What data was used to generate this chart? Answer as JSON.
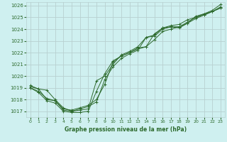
{
  "xlabel": "Graphe pression niveau de la mer (hPa)",
  "bg_color": "#cff0f0",
  "grid_color": "#b8d0d0",
  "line_color": "#2d6a2d",
  "xlim": [
    -0.5,
    23.5
  ],
  "ylim": [
    1016.5,
    1026.3
  ],
  "yticks": [
    1017,
    1018,
    1019,
    1020,
    1021,
    1022,
    1023,
    1024,
    1025,
    1026
  ],
  "xticks": [
    0,
    1,
    2,
    3,
    4,
    5,
    6,
    7,
    8,
    9,
    10,
    11,
    12,
    13,
    14,
    15,
    16,
    17,
    18,
    19,
    20,
    21,
    22,
    23
  ],
  "series": [
    [
      1019.0,
      1018.7,
      1018.1,
      1017.9,
      1017.1,
      1017.0,
      1017.1,
      1017.2,
      1019.6,
      1020.0,
      1021.0,
      1021.8,
      1022.1,
      1022.5,
      1023.3,
      1023.5,
      1024.1,
      1024.2,
      1024.1,
      1024.5,
      1025.1,
      1025.3,
      1025.5,
      1025.8
    ],
    [
      1019.1,
      1018.9,
      1018.8,
      1018.0,
      1017.3,
      1017.0,
      1017.2,
      1017.4,
      1017.8,
      1019.7,
      1020.8,
      1021.5,
      1021.9,
      1022.2,
      1023.3,
      1023.4,
      1024.0,
      1024.2,
      1024.2,
      1024.6,
      1025.0,
      1025.2,
      1025.5,
      1025.9
    ],
    [
      1019.2,
      1018.9,
      1018.0,
      1017.9,
      1017.2,
      1017.1,
      1017.3,
      1017.5,
      1018.0,
      1019.3,
      1021.2,
      1021.7,
      1022.0,
      1022.3,
      1022.5,
      1023.6,
      1024.1,
      1024.3,
      1024.4,
      1024.8,
      1025.0,
      1025.3,
      1025.6,
      1026.1
    ],
    [
      1019.0,
      1018.6,
      1017.9,
      1017.7,
      1017.0,
      1016.9,
      1016.9,
      1017.0,
      1018.7,
      1020.2,
      1021.3,
      1021.7,
      1022.0,
      1022.4,
      1022.5,
      1023.1,
      1023.8,
      1024.0,
      1024.2,
      1024.5,
      1024.9,
      1025.2,
      1025.5,
      1025.8
    ]
  ]
}
